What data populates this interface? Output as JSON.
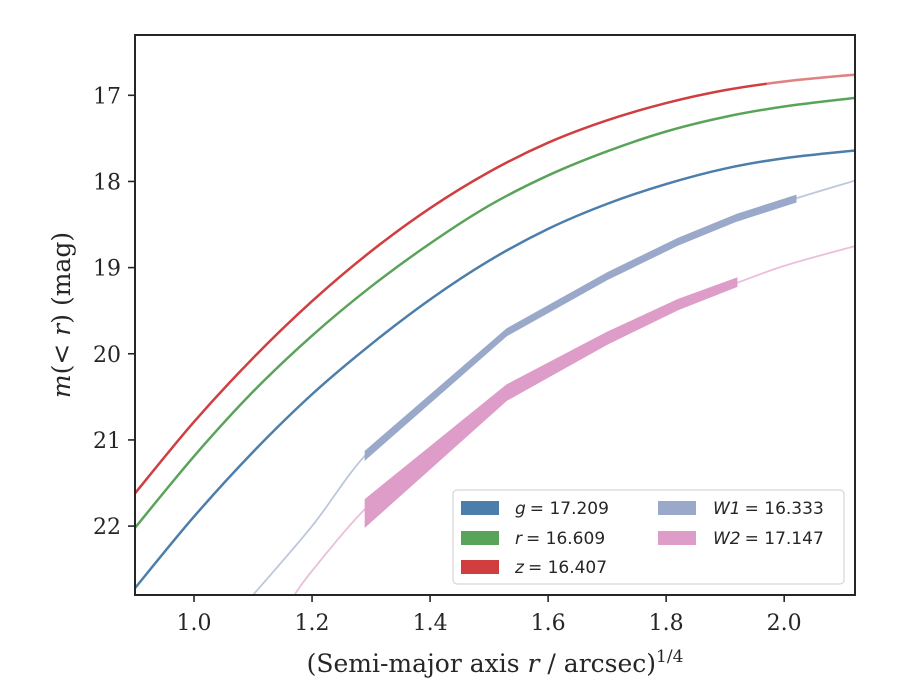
{
  "chart_data": {
    "type": "line",
    "title": "",
    "xlabel": "(Semi-major axis r / arcsec)",
    "xlabel_parts": [
      "(Semi-major axis ",
      "r",
      " / arcsec)",
      "1/4"
    ],
    "ylabel": "m(<r) (mag)",
    "ylabel_parts": [
      "m",
      "(< ",
      "r",
      ") (mag)"
    ],
    "xlim": [
      0.9,
      2.12
    ],
    "ylim": [
      22.8,
      16.3
    ],
    "y_inverted": true,
    "xticks": [
      1.0,
      1.2,
      1.4,
      1.6,
      1.8,
      2.0
    ],
    "xtick_labels": [
      "1.0",
      "1.2",
      "1.4",
      "1.6",
      "1.8",
      "2.0"
    ],
    "yticks": [
      17,
      18,
      19,
      20,
      21,
      22
    ],
    "ytick_labels": [
      "17",
      "18",
      "19",
      "20",
      "21",
      "22"
    ],
    "grid": false,
    "legend_placement": "lower-right",
    "series": [
      {
        "name": "g = 17.209",
        "label_var": "g",
        "label_val": "= 17.209",
        "color": "#4c7eab",
        "kind": "curve",
        "x": [
          0.9,
          1.0,
          1.1,
          1.2,
          1.3,
          1.4,
          1.5,
          1.6,
          1.7,
          1.8,
          1.9,
          2.0,
          2.12
        ],
        "y": [
          22.72,
          21.89,
          21.14,
          20.47,
          19.89,
          19.37,
          18.92,
          18.55,
          18.26,
          18.03,
          17.85,
          17.73,
          17.64
        ]
      },
      {
        "name": "r = 16.609",
        "label_var": "r",
        "label_val": "= 16.609",
        "color": "#5aa35a",
        "kind": "curve",
        "x": [
          0.9,
          1.0,
          1.1,
          1.2,
          1.3,
          1.4,
          1.5,
          1.6,
          1.7,
          1.8,
          1.9,
          2.0,
          2.12
        ],
        "y": [
          22.02,
          21.19,
          20.44,
          19.79,
          19.22,
          18.72,
          18.28,
          17.93,
          17.65,
          17.42,
          17.25,
          17.13,
          17.03
        ]
      },
      {
        "name": "z = 16.407",
        "label_var": "z",
        "label_val": "= 16.407",
        "color": "#d03e40",
        "kind": "curve",
        "extrapolated_from": 1.97,
        "x": [
          0.9,
          1.0,
          1.1,
          1.2,
          1.3,
          1.4,
          1.5,
          1.6,
          1.7,
          1.8,
          1.9,
          2.0,
          2.12
        ],
        "y": [
          21.62,
          20.79,
          20.05,
          19.39,
          18.81,
          18.31,
          17.89,
          17.55,
          17.29,
          17.09,
          16.94,
          16.84,
          16.76
        ]
      },
      {
        "name": "W1 = 16.333",
        "label_var": "W1",
        "label_val": "= 16.333",
        "color": "#9aa9c9",
        "kind": "band",
        "model_x": [
          1.1,
          1.2,
          1.29,
          1.4,
          1.53,
          1.6,
          1.7,
          1.8,
          1.9,
          2.0,
          2.12
        ],
        "model_y": [
          22.8,
          22.0,
          21.18,
          20.5,
          19.75,
          19.48,
          19.12,
          18.78,
          18.48,
          18.24,
          17.99
        ],
        "x": [
          1.29,
          1.53,
          1.7,
          1.82,
          1.92,
          2.02
        ],
        "y": [
          21.18,
          19.75,
          19.1,
          18.7,
          18.42,
          18.2
        ],
        "err": [
          0.05,
          0.04,
          0.04,
          0.04,
          0.04,
          0.04
        ]
      },
      {
        "name": "W2 = 17.147",
        "label_var": "W2",
        "label_val": "= 17.147",
        "color": "#de9cc8",
        "kind": "band",
        "model_x": [
          1.17,
          1.2,
          1.29,
          1.4,
          1.53,
          1.6,
          1.7,
          1.8,
          1.9,
          2.0,
          2.12
        ],
        "model_y": [
          22.8,
          22.52,
          21.8,
          21.15,
          20.43,
          20.15,
          19.82,
          19.5,
          19.23,
          18.98,
          18.75
        ],
        "x": [
          1.29,
          1.53,
          1.7,
          1.82,
          1.92
        ],
        "y": [
          21.85,
          20.45,
          19.82,
          19.43,
          19.17
        ],
        "err": [
          0.16,
          0.09,
          0.07,
          0.06,
          0.05
        ]
      }
    ]
  }
}
